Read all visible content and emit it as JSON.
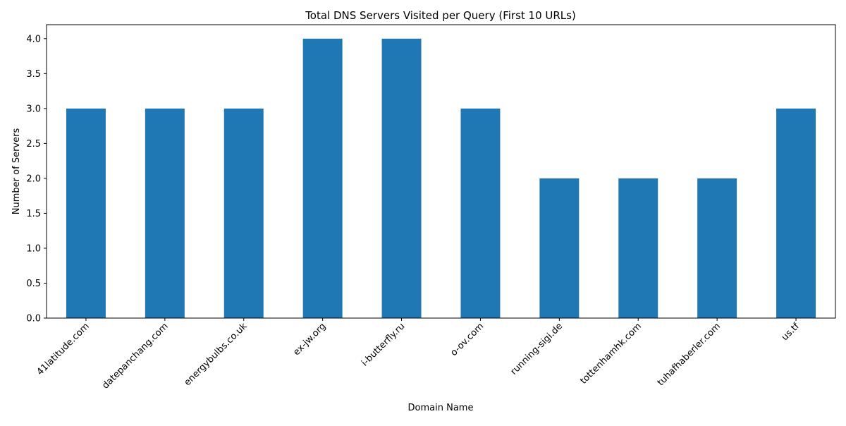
{
  "chart_data": {
    "type": "bar",
    "title": "Total DNS Servers Visited per Query (First 10 URLs)",
    "xlabel": "Domain Name",
    "ylabel": "Number of Servers",
    "categories": [
      "41latitude.com",
      "datepanchang.com",
      "energybulbs.co.uk",
      "ex-jw.org",
      "i-butterfly.ru",
      "o-ov.com",
      "running-sigi.de",
      "tottenhamhk.com",
      "tuhafhaberler.com",
      "us.tf"
    ],
    "values": [
      3,
      3,
      3,
      4,
      4,
      3,
      2,
      2,
      2,
      3
    ],
    "ylim": [
      0,
      4.2
    ],
    "yticks": [
      0.0,
      0.5,
      1.0,
      1.5,
      2.0,
      2.5,
      3.0,
      3.5,
      4.0
    ],
    "ytick_labels": [
      "0.0",
      "0.5",
      "1.0",
      "1.5",
      "2.0",
      "2.5",
      "3.0",
      "3.5",
      "4.0"
    ],
    "bar_color": "#1f77b4",
    "grid": false,
    "legend": "none",
    "xtick_rotation_deg": 45
  }
}
